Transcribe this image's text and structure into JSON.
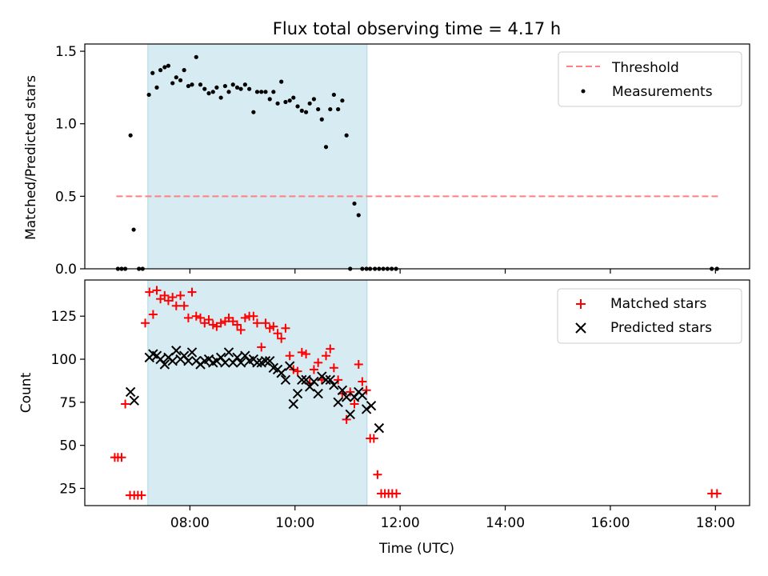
{
  "chart_data": [
    {
      "type": "scatter",
      "title": "Flux total observing time = 4.17 h",
      "xlabel": "",
      "ylabel": "Matched/Predicted stars",
      "xlim_hours": [
        6.0,
        18.65
      ],
      "ylim": [
        0,
        1.55
      ],
      "yticks": [
        0.0,
        0.5,
        1.0,
        1.5
      ],
      "ytick_labels": [
        "0.0",
        "0.5",
        "1.0",
        "1.5"
      ],
      "xticks_hours": [
        8,
        10,
        12,
        14,
        16,
        18
      ],
      "shaded_span_hours": [
        7.2,
        11.37
      ],
      "legend_location": "upper right",
      "threshold": {
        "name": "Threshold",
        "value": 0.5,
        "x_range_hours": [
          6.6,
          18.1
        ],
        "color": "#ff8080",
        "style": "dashed"
      },
      "measurements": {
        "name": "Measurements",
        "color": "#000000",
        "x_hours": [
          6.63,
          6.7,
          6.77,
          6.87,
          6.93,
          7.03,
          7.1,
          7.22,
          7.29,
          7.37,
          7.44,
          7.52,
          7.59,
          7.67,
          7.74,
          7.82,
          7.89,
          7.97,
          8.04,
          8.12,
          8.2,
          8.28,
          8.36,
          8.44,
          8.51,
          8.59,
          8.67,
          8.74,
          8.82,
          8.9,
          8.97,
          9.05,
          9.13,
          9.21,
          9.28,
          9.36,
          9.44,
          9.52,
          9.59,
          9.67,
          9.74,
          9.82,
          9.9,
          9.97,
          10.05,
          10.13,
          10.21,
          10.28,
          10.36,
          10.44,
          10.51,
          10.59,
          10.67,
          10.74,
          10.82,
          10.9,
          10.98,
          11.05,
          11.13,
          11.21,
          11.28,
          11.36,
          11.43,
          11.52,
          11.6,
          11.68,
          11.76,
          11.84,
          11.92,
          17.93,
          18.03
        ],
        "y": [
          0,
          0,
          0,
          0.92,
          0.27,
          0,
          0,
          1.2,
          1.35,
          1.25,
          1.37,
          1.39,
          1.4,
          1.28,
          1.32,
          1.3,
          1.37,
          1.26,
          1.27,
          1.46,
          1.27,
          1.24,
          1.21,
          1.22,
          1.25,
          1.18,
          1.26,
          1.22,
          1.27,
          1.25,
          1.24,
          1.27,
          1.24,
          1.08,
          1.22,
          1.22,
          1.22,
          1.17,
          1.22,
          1.14,
          1.29,
          1.15,
          1.16,
          1.18,
          1.12,
          1.09,
          1.08,
          1.14,
          1.17,
          1.1,
          1.03,
          0.84,
          1.1,
          1.2,
          1.1,
          1.16,
          0.92,
          0,
          0.45,
          0.37,
          0,
          0,
          0,
          0,
          0,
          0,
          0,
          0,
          0,
          0,
          0
        ]
      }
    },
    {
      "type": "scatter",
      "title": "",
      "xlabel": "Time (UTC)",
      "ylabel": "Count",
      "xlim_hours": [
        6.0,
        18.65
      ],
      "ylim": [
        15,
        146
      ],
      "yticks": [
        25,
        50,
        75,
        100,
        125
      ],
      "ytick_labels": [
        "25",
        "50",
        "75",
        "100",
        "125"
      ],
      "xticks_hours": [
        8,
        10,
        12,
        14,
        16,
        18
      ],
      "xtick_labels": [
        "08:00",
        "10:00",
        "12:00",
        "14:00",
        "16:00",
        "18:00"
      ],
      "shaded_span_hours": [
        7.2,
        11.37
      ],
      "legend_location": "upper right",
      "series": [
        {
          "name": "Matched stars",
          "marker": "+",
          "color": "#ff0000",
          "x_hours": [
            6.57,
            6.63,
            6.7,
            6.77,
            6.86,
            6.94,
            7.01,
            7.08,
            7.15,
            7.23,
            7.3,
            7.37,
            7.44,
            7.52,
            7.59,
            7.67,
            7.74,
            7.82,
            7.89,
            7.97,
            8.04,
            8.12,
            8.2,
            8.28,
            8.36,
            8.44,
            8.51,
            8.59,
            8.67,
            8.74,
            8.82,
            8.9,
            8.97,
            9.05,
            9.13,
            9.21,
            9.28,
            9.36,
            9.44,
            9.52,
            9.59,
            9.67,
            9.74,
            9.82,
            9.9,
            9.97,
            10.05,
            10.13,
            10.21,
            10.28,
            10.36,
            10.44,
            10.51,
            10.59,
            10.67,
            10.74,
            10.82,
            10.9,
            10.98,
            11.05,
            11.13,
            11.21,
            11.28,
            11.36,
            11.43,
            11.5,
            11.57,
            11.64,
            11.71,
            11.78,
            11.85,
            11.93,
            17.93,
            18.03
          ],
          "y": [
            43,
            43,
            43,
            74,
            21,
            21,
            21,
            21,
            121,
            139,
            126,
            140,
            135,
            137,
            134,
            136,
            131,
            137,
            131,
            124,
            139,
            125,
            124,
            121,
            123,
            120,
            119,
            121,
            122,
            124,
            122,
            120,
            117,
            124,
            125,
            125,
            121,
            107,
            121,
            118,
            119,
            115,
            112,
            118,
            102,
            94,
            93,
            104,
            103,
            86,
            94,
            98,
            88,
            102,
            106,
            95,
            88,
            80,
            65,
            81,
            74,
            97,
            87,
            82,
            54,
            54,
            33,
            22,
            22,
            22,
            22,
            22,
            22,
            22
          ]
        },
        {
          "name": "Predicted stars",
          "marker": "x",
          "color": "#000000",
          "x_hours": [
            6.87,
            6.94,
            7.23,
            7.3,
            7.37,
            7.44,
            7.52,
            7.59,
            7.67,
            7.74,
            7.82,
            7.89,
            7.97,
            8.04,
            8.12,
            8.2,
            8.28,
            8.36,
            8.44,
            8.51,
            8.59,
            8.67,
            8.74,
            8.82,
            8.9,
            8.97,
            9.05,
            9.13,
            9.21,
            9.28,
            9.36,
            9.44,
            9.52,
            9.59,
            9.67,
            9.74,
            9.82,
            9.9,
            9.97,
            10.05,
            10.13,
            10.21,
            10.28,
            10.36,
            10.44,
            10.51,
            10.59,
            10.67,
            10.74,
            10.82,
            10.9,
            10.98,
            11.05,
            11.13,
            11.21,
            11.28,
            11.36,
            11.45,
            11.6
          ],
          "y": [
            81,
            76,
            101,
            103,
            102,
            100,
            97,
            101,
            99,
            105,
            100,
            102,
            99,
            104,
            99,
            97,
            99,
            100,
            98,
            99,
            101,
            98,
            104,
            98,
            101,
            98,
            102,
            99,
            100,
            98,
            98,
            99,
            99,
            95,
            94,
            92,
            88,
            96,
            74,
            80,
            88,
            88,
            84,
            87,
            80,
            90,
            88,
            88,
            85,
            75,
            82,
            78,
            68,
            78,
            81,
            79,
            71,
            73,
            60
          ]
        }
      ]
    }
  ]
}
